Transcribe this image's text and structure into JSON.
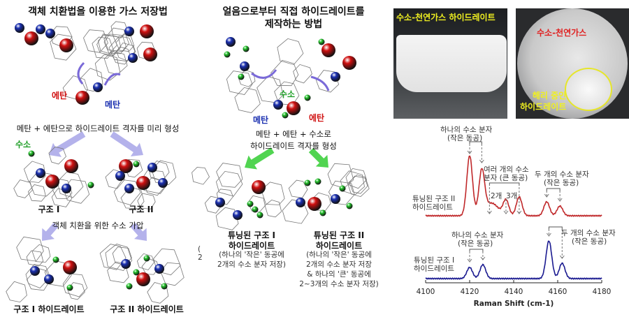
{
  "left_panel": {
    "title": "객체 치환법을 이용한 가스 저장법",
    "ethane_label": "에탄",
    "methane_label": "메탄",
    "step1_caption": "메탄 + 에탄으로 하이드레이트 격자를 미리 형성",
    "hydrogen_label": "수소",
    "structure1_label": "구조 I",
    "structure2_label": "구조 II",
    "step2_caption": "객체 치환을 위한 수소 가압",
    "result1_label": "구조 I 하이드레이트",
    "result2_label": "구조 II 하이드레이트"
  },
  "middle_panel": {
    "title_line1": "얼음으로부터 직접 하이드레이트를",
    "title_line2": "제작하는 방법",
    "hydrogen_label": "수소",
    "methane_label": "메탄",
    "ethane_label": "에탄",
    "caption_line1": "메탄 + 에탄 + 수소로",
    "caption_line2": "하이드레이트 격자를 형성",
    "tuned1_title_line1": "튜닝된 구조 I",
    "tuned1_title_line2": "하이드레이트",
    "tuned1_desc_line1": "(하나의 '작은' 동공에",
    "tuned1_desc_line2": "2개의 수소 분자 저장)",
    "tuned2_title_line1": "튜닝된 구조 II",
    "tuned2_title_line2": "하이드레이트",
    "tuned2_desc_line1": "(하나의 '작은' 동공에",
    "tuned2_desc_line2": "2개의 수소 분자 저장",
    "tuned2_desc_line3": "& 하나의 '큰' 동공에",
    "tuned2_desc_line4": "2~3개의 수소 분자 저장)",
    "cut_text_1": "(",
    "cut_text_2": "2"
  },
  "photos": {
    "photo1_caption": "수소-천연가스 하이드레이트",
    "photo2_caption": "수소-천연가스",
    "photo2_circle_caption_line1": "해리 중인",
    "photo2_circle_caption_line2": "하이드레이트"
  },
  "colors": {
    "methane": "#1a2fb0",
    "ethane": "#d01010",
    "hydrogen": "#22c22a",
    "arrow_purple": "#7a6ad8",
    "arrow_green": "#33cc33",
    "red_trace": "#c0282a",
    "blue_trace": "#1a1a90",
    "photo_caption_yellow": "#f0f020"
  },
  "chart_data": {
    "type": "line",
    "xlabel": "Raman Shift (cm-1)",
    "xlim": [
      4100,
      4180
    ],
    "xticks": [
      "4100",
      "4120",
      "4140",
      "4160",
      "4180"
    ],
    "yaxis_shown": false,
    "series": [
      {
        "name": "튜닝된 구조 II 하이드레이트",
        "label_line1": "튜닝된 구조 II",
        "label_line2": "하이드레이트",
        "peaks": [
          {
            "x": 4120,
            "h": 86
          },
          {
            "x": 4125.5,
            "h": 62
          },
          {
            "x": 4130,
            "h": 18
          },
          {
            "x": 4136.5,
            "h": 22
          },
          {
            "x": 4142.5,
            "h": 27
          },
          {
            "x": 4155,
            "h": 20
          },
          {
            "x": 4161,
            "h": 14
          }
        ]
      },
      {
        "name": "튜닝된 구조 I 하이드레이트",
        "label_line1": "튜닝된 구조 I",
        "label_line2": "하이드레이트",
        "peaks": [
          {
            "x": 4120,
            "h": 16
          },
          {
            "x": 4126,
            "h": 20
          },
          {
            "x": 4156,
            "h": 54
          },
          {
            "x": 4162,
            "h": 22
          }
        ]
      }
    ],
    "annotations": {
      "red_one_h2_line1": "하나의 수소 분자",
      "red_one_h2_line2": "(작은 동공)",
      "red_multi_line1": "여러 개의 수소",
      "red_multi_line2": "분자 (큰 동공)",
      "red_two": "2개",
      "red_three": "3개",
      "red_two_h2_line1": "두 개의 수소 분자",
      "red_two_h2_line2": "(작은 동공)",
      "blue_one_h2_line1": "하나의 수소 분자",
      "blue_one_h2_line2": "(작은 동공)",
      "blue_two_h2_line1": "두 개의 수소 분자",
      "blue_two_h2_line2": "(작은 동공)"
    }
  }
}
